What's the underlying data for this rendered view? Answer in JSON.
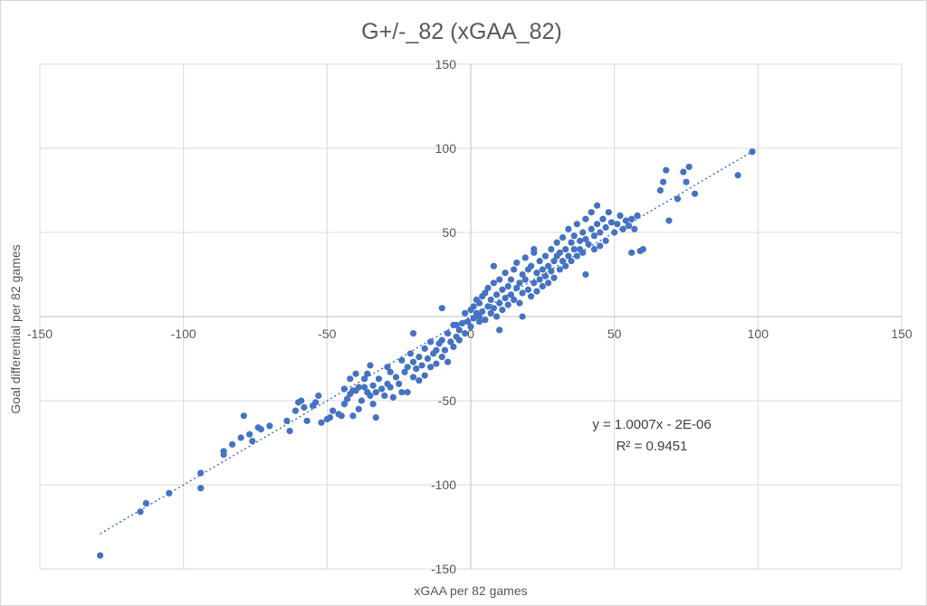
{
  "chart_data": {
    "type": "scatter",
    "title": "G+/-_82 (xGAA_82)",
    "xlabel": "xGAA per 82 games",
    "ylabel": "Goal differential per 82 games",
    "xlim": [
      -150,
      150
    ],
    "ylim": [
      -150,
      150
    ],
    "x_ticks": [
      "-150",
      "-100",
      "-50",
      "0",
      "50",
      "100",
      "150"
    ],
    "y_ticks": [
      "150",
      "100",
      "50",
      "-50",
      "-100",
      "-150"
    ],
    "grid": true,
    "marker_color": "#4472c4",
    "trendline": {
      "type": "linear",
      "style": "dotted",
      "slope": 1.0007,
      "intercept": 0,
      "x_range": [
        -129,
        98
      ],
      "equation": "y = 1.0007x - 2E-06",
      "r_squared": "R² = 0.9451"
    },
    "points": [
      [
        -129,
        -142
      ],
      [
        -115,
        -116
      ],
      [
        -113,
        -111
      ],
      [
        -105,
        -105
      ],
      [
        -94,
        -93
      ],
      [
        -94,
        -102
      ],
      [
        -86,
        -80
      ],
      [
        -86,
        -82
      ],
      [
        -83,
        -76
      ],
      [
        -80,
        -72
      ],
      [
        -79,
        -59
      ],
      [
        -77,
        -70
      ],
      [
        -76,
        -74
      ],
      [
        -74,
        -66
      ],
      [
        -73,
        -67
      ],
      [
        -70,
        -65
      ],
      [
        -64,
        -62
      ],
      [
        -63,
        -68
      ],
      [
        -61,
        -56
      ],
      [
        -60,
        -51
      ],
      [
        -59,
        -50
      ],
      [
        -58,
        -54
      ],
      [
        -57,
        -62
      ],
      [
        -55,
        -53
      ],
      [
        -54,
        -51
      ],
      [
        -53,
        -47
      ],
      [
        -50,
        -61
      ],
      [
        -49,
        -60
      ],
      [
        -48,
        -56
      ],
      [
        -46,
        -58
      ],
      [
        -45,
        -59
      ],
      [
        -44,
        -52
      ],
      [
        -44,
        -43
      ],
      [
        -43,
        -49
      ],
      [
        -42,
        -46
      ],
      [
        -42,
        -37
      ],
      [
        -41,
        -44
      ],
      [
        -41,
        -59
      ],
      [
        -40,
        -44
      ],
      [
        -40,
        -34
      ],
      [
        -39,
        -55
      ],
      [
        -39,
        -42
      ],
      [
        -38,
        -50
      ],
      [
        -37,
        -37
      ],
      [
        -37,
        -42
      ],
      [
        -36,
        -34
      ],
      [
        -36,
        -45
      ],
      [
        -35,
        -47
      ],
      [
        -34,
        -41
      ],
      [
        -34,
        -52
      ],
      [
        -33,
        -45
      ],
      [
        -32,
        -37
      ],
      [
        -31,
        -43
      ],
      [
        -30,
        -47
      ],
      [
        -29,
        -30
      ],
      [
        -29,
        -40
      ],
      [
        -28,
        -42
      ],
      [
        -28,
        -33
      ],
      [
        -27,
        -48
      ],
      [
        -26,
        -36
      ],
      [
        -25,
        -40
      ],
      [
        -24,
        -26
      ],
      [
        -23,
        -33
      ],
      [
        -22,
        -45
      ],
      [
        -22,
        -30
      ],
      [
        -21,
        -22
      ],
      [
        -20,
        -27
      ],
      [
        -20,
        -36
      ],
      [
        -19,
        -31
      ],
      [
        -18,
        -24
      ],
      [
        -18,
        -38
      ],
      [
        -17,
        -29
      ],
      [
        -16,
        -35
      ],
      [
        -16,
        -19
      ],
      [
        -15,
        -25
      ],
      [
        -14,
        -30
      ],
      [
        -14,
        -15
      ],
      [
        -13,
        -22
      ],
      [
        -12,
        -28
      ],
      [
        -12,
        -20
      ],
      [
        -11,
        -16
      ],
      [
        -10,
        -24
      ],
      [
        -10,
        -14
      ],
      [
        -9,
        -20
      ],
      [
        -8,
        -27
      ],
      [
        -8,
        -10
      ],
      [
        -7,
        -15
      ],
      [
        -6,
        -18
      ],
      [
        -6,
        -5
      ],
      [
        -5,
        -12
      ],
      [
        -4,
        -8
      ],
      [
        -4,
        -14
      ],
      [
        -3,
        -4
      ],
      [
        -2,
        -10
      ],
      [
        -2,
        2
      ],
      [
        -1,
        -3
      ],
      [
        0,
        4
      ],
      [
        0,
        -6
      ],
      [
        1,
        6
      ],
      [
        1,
        -1
      ],
      [
        2,
        2
      ],
      [
        2,
        10
      ],
      [
        3,
        0
      ],
      [
        3,
        8
      ],
      [
        4,
        12
      ],
      [
        4,
        3
      ],
      [
        5,
        -2
      ],
      [
        5,
        14
      ],
      [
        6,
        6
      ],
      [
        6,
        17
      ],
      [
        7,
        2
      ],
      [
        7,
        10
      ],
      [
        8,
        20
      ],
      [
        8,
        5
      ],
      [
        9,
        13
      ],
      [
        9,
        0
      ],
      [
        10,
        8
      ],
      [
        10,
        22
      ],
      [
        11,
        16
      ],
      [
        11,
        4
      ],
      [
        12,
        11
      ],
      [
        12,
        26
      ],
      [
        13,
        18
      ],
      [
        13,
        7
      ],
      [
        14,
        22
      ],
      [
        14,
        13
      ],
      [
        15,
        28
      ],
      [
        15,
        10
      ],
      [
        16,
        17
      ],
      [
        16,
        32
      ],
      [
        17,
        20
      ],
      [
        17,
        8
      ],
      [
        18,
        14
      ],
      [
        18,
        25
      ],
      [
        19,
        22
      ],
      [
        19,
        35
      ],
      [
        20,
        16
      ],
      [
        20,
        28
      ],
      [
        21,
        12
      ],
      [
        21,
        30
      ],
      [
        22,
        20
      ],
      [
        22,
        38
      ],
      [
        23,
        26
      ],
      [
        23,
        15
      ],
      [
        24,
        33
      ],
      [
        24,
        22
      ],
      [
        25,
        28
      ],
      [
        25,
        18
      ],
      [
        26,
        36
      ],
      [
        26,
        24
      ],
      [
        27,
        30
      ],
      [
        27,
        20
      ],
      [
        28,
        40
      ],
      [
        28,
        27
      ],
      [
        29,
        33
      ],
      [
        29,
        23
      ],
      [
        30,
        36
      ],
      [
        30,
        44
      ],
      [
        31,
        28
      ],
      [
        31,
        38
      ],
      [
        32,
        33
      ],
      [
        32,
        47
      ],
      [
        33,
        40
      ],
      [
        33,
        30
      ],
      [
        34,
        36
      ],
      [
        34,
        52
      ],
      [
        35,
        44
      ],
      [
        35,
        33
      ],
      [
        36,
        40
      ],
      [
        36,
        48
      ],
      [
        37,
        36
      ],
      [
        37,
        55
      ],
      [
        38,
        45
      ],
      [
        38,
        40
      ],
      [
        39,
        50
      ],
      [
        39,
        38
      ],
      [
        40,
        46
      ],
      [
        40,
        58
      ],
      [
        41,
        43
      ],
      [
        42,
        52
      ],
      [
        42,
        62
      ],
      [
        43,
        48
      ],
      [
        43,
        40
      ],
      [
        44,
        55
      ],
      [
        44,
        66
      ],
      [
        45,
        50
      ],
      [
        45,
        42
      ],
      [
        46,
        58
      ],
      [
        47,
        45
      ],
      [
        47,
        53
      ],
      [
        48,
        62
      ],
      [
        49,
        56
      ],
      [
        50,
        50
      ],
      [
        51,
        55
      ],
      [
        52,
        60
      ],
      [
        53,
        52
      ],
      [
        54,
        57
      ],
      [
        55,
        54
      ],
      [
        56,
        58
      ],
      [
        57,
        52
      ],
      [
        58,
        60
      ],
      [
        59,
        39
      ],
      [
        60,
        40
      ],
      [
        66,
        75
      ],
      [
        67,
        80
      ],
      [
        68,
        87
      ],
      [
        69,
        57
      ],
      [
        72,
        70
      ],
      [
        74,
        86
      ],
      [
        75,
        80
      ],
      [
        76,
        89
      ],
      [
        78,
        73
      ],
      [
        93,
        84
      ],
      [
        98,
        98
      ],
      [
        -5,
        -5
      ],
      [
        3,
        -3
      ],
      [
        10,
        -8
      ],
      [
        -24,
        -45
      ],
      [
        -35,
        -29
      ],
      [
        -52,
        -63
      ],
      [
        -33,
        -60
      ],
      [
        22,
        40
      ],
      [
        40,
        25
      ],
      [
        56,
        38
      ],
      [
        18,
        0
      ],
      [
        -10,
        5
      ],
      [
        -20,
        -10
      ],
      [
        8,
        30
      ]
    ]
  }
}
